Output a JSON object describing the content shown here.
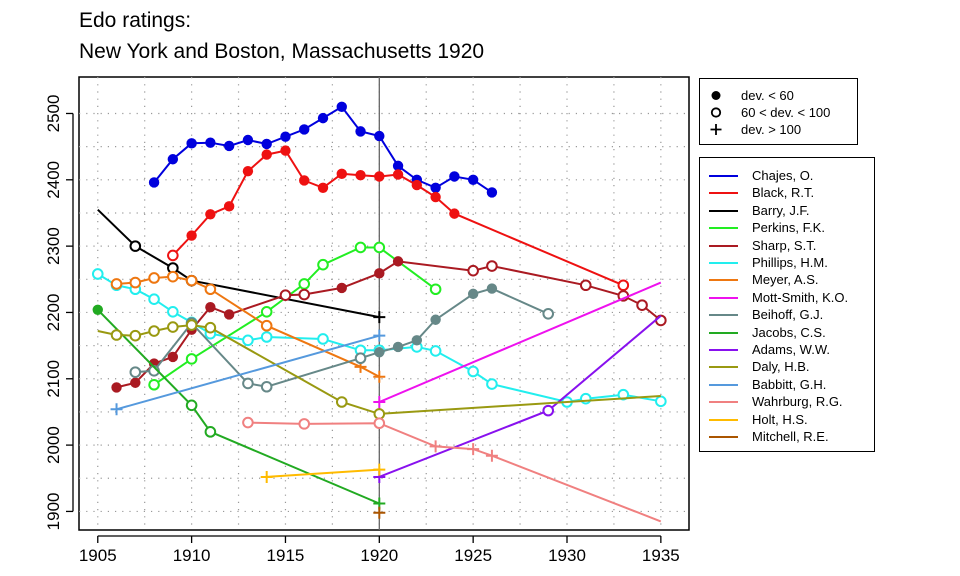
{
  "chart_data": {
    "type": "line",
    "title": "Edo ratings:",
    "subtitle": "New York and Boston, Massachusetts 1920",
    "xlabel": "",
    "ylabel": "",
    "xlim": [
      1904,
      1936.5
    ],
    "ylim": [
      1872,
      2555
    ],
    "x_ticks": [
      1905,
      1910,
      1915,
      1920,
      1925,
      1930,
      1935
    ],
    "y_ticks": [
      1900,
      2000,
      2100,
      2200,
      2300,
      2400,
      2500
    ],
    "grid": true,
    "reference_line_x": 1920,
    "legend_position": "right",
    "symbol_legend": [
      {
        "marker": "filled",
        "label": "dev. < 60"
      },
      {
        "marker": "open",
        "label": "60 < dev. < 100"
      },
      {
        "marker": "plus",
        "label": "dev. > 100"
      }
    ],
    "series": [
      {
        "name": "Chajes, O.",
        "color": "#0000dd",
        "points": [
          [
            1908,
            2396,
            "f"
          ],
          [
            1909,
            2431,
            "f"
          ],
          [
            1910,
            2455,
            "f"
          ],
          [
            1911,
            2456,
            "f"
          ],
          [
            1912,
            2451,
            "f"
          ],
          [
            1913,
            2460,
            "f"
          ],
          [
            1914,
            2454,
            "f"
          ],
          [
            1915,
            2465,
            "f"
          ],
          [
            1916,
            2476,
            "f"
          ],
          [
            1917,
            2493,
            "f"
          ],
          [
            1918,
            2510,
            "f"
          ],
          [
            1919,
            2473,
            "f"
          ],
          [
            1920,
            2466,
            "f"
          ],
          [
            1921,
            2421,
            "f"
          ],
          [
            1922,
            2400,
            "f"
          ],
          [
            1923,
            2388,
            "f"
          ],
          [
            1924,
            2405,
            "f"
          ],
          [
            1925,
            2400,
            "f"
          ],
          [
            1926,
            2381,
            "f"
          ]
        ]
      },
      {
        "name": "Black, R.T.",
        "color": "#ee1111",
        "points": [
          [
            1909,
            2286,
            "o"
          ],
          [
            1910,
            2316,
            "f"
          ],
          [
            1911,
            2348,
            "f"
          ],
          [
            1912,
            2360,
            "f"
          ],
          [
            1913,
            2413,
            "f"
          ],
          [
            1914,
            2438,
            "f"
          ],
          [
            1915,
            2444,
            "f"
          ],
          [
            1916,
            2399,
            "f"
          ],
          [
            1917,
            2388,
            "f"
          ],
          [
            1918,
            2409,
            "f"
          ],
          [
            1919,
            2407,
            "f"
          ],
          [
            1920,
            2405,
            "f"
          ],
          [
            1921,
            2408,
            "f"
          ],
          [
            1922,
            2392,
            "f"
          ],
          [
            1923,
            2374,
            "f"
          ],
          [
            1924,
            2349,
            "f"
          ],
          [
            1933,
            2241,
            "o"
          ]
        ]
      },
      {
        "name": "Barry, J.F.",
        "color": "#000000",
        "points": [
          [
            1905,
            2355,
            "n"
          ],
          [
            1907,
            2300,
            "o"
          ],
          [
            1909,
            2267,
            "o"
          ],
          [
            1910,
            2248,
            "o"
          ],
          [
            1920,
            2193,
            "p"
          ]
        ]
      },
      {
        "name": "Perkins, F.K.",
        "color": "#22ee22",
        "points": [
          [
            1908,
            2091,
            "o"
          ],
          [
            1910,
            2130,
            "o"
          ],
          [
            1914,
            2201,
            "o"
          ],
          [
            1916,
            2243,
            "o"
          ],
          [
            1917,
            2272,
            "o"
          ],
          [
            1919,
            2298,
            "o"
          ],
          [
            1920,
            2298,
            "o"
          ],
          [
            1923,
            2235,
            "o"
          ]
        ]
      },
      {
        "name": "Sharp, S.T.",
        "color": "#aa1a22",
        "points": [
          [
            1906,
            2087,
            "f"
          ],
          [
            1907,
            2094,
            "f"
          ],
          [
            1908,
            2123,
            "f"
          ],
          [
            1909,
            2133,
            "f"
          ],
          [
            1910,
            2174,
            "f"
          ],
          [
            1911,
            2208,
            "f"
          ],
          [
            1912,
            2197,
            "f"
          ],
          [
            1915,
            2226,
            "o"
          ],
          [
            1916,
            2227,
            "o"
          ],
          [
            1918,
            2237,
            "f"
          ],
          [
            1920,
            2259,
            "f"
          ],
          [
            1921,
            2277,
            "f"
          ],
          [
            1925,
            2263,
            "o"
          ],
          [
            1926,
            2270,
            "o"
          ],
          [
            1931,
            2241,
            "o"
          ],
          [
            1933,
            2225,
            "o"
          ],
          [
            1934,
            2211,
            "o"
          ],
          [
            1935,
            2188,
            "o"
          ]
        ]
      },
      {
        "name": "Phillips, H.M.",
        "color": "#22eeee",
        "points": [
          [
            1905,
            2258,
            "o"
          ],
          [
            1906,
            2241,
            "o"
          ],
          [
            1907,
            2235,
            "o"
          ],
          [
            1908,
            2220,
            "o"
          ],
          [
            1909,
            2201,
            "o"
          ],
          [
            1910,
            2185,
            "o"
          ],
          [
            1911,
            2168,
            "o"
          ],
          [
            1913,
            2158,
            "o"
          ],
          [
            1914,
            2163,
            "o"
          ],
          [
            1917,
            2160,
            "o"
          ],
          [
            1919,
            2143,
            "o"
          ],
          [
            1920,
            2143,
            "o"
          ],
          [
            1922,
            2148,
            "o"
          ],
          [
            1923,
            2142,
            "o"
          ],
          [
            1925,
            2111,
            "o"
          ],
          [
            1926,
            2092,
            "o"
          ],
          [
            1930,
            2065,
            "o"
          ],
          [
            1931,
            2070,
            "o"
          ],
          [
            1933,
            2076,
            "o"
          ],
          [
            1935,
            2066,
            "o"
          ]
        ]
      },
      {
        "name": "Meyer, A.S.",
        "color": "#ee7711",
        "points": [
          [
            1906,
            2243,
            "o"
          ],
          [
            1907,
            2245,
            "o"
          ],
          [
            1908,
            2252,
            "o"
          ],
          [
            1909,
            2254,
            "o"
          ],
          [
            1910,
            2248,
            "o"
          ],
          [
            1911,
            2235,
            "o"
          ],
          [
            1914,
            2180,
            "o"
          ],
          [
            1919,
            2118,
            "p"
          ],
          [
            1920,
            2103,
            "p"
          ]
        ]
      },
      {
        "name": "Mott-Smith, K.O.",
        "color": "#ee11ee",
        "points": [
          [
            1920,
            2065,
            "p"
          ],
          [
            1935,
            2245,
            "n"
          ]
        ]
      },
      {
        "name": "Beihoff, G.J.",
        "color": "#668888",
        "points": [
          [
            1907,
            2110,
            "o"
          ],
          [
            1908,
            2112,
            "o"
          ],
          [
            1910,
            2184,
            "o"
          ],
          [
            1913,
            2093,
            "o"
          ],
          [
            1914,
            2088,
            "o"
          ],
          [
            1919,
            2131,
            "o"
          ],
          [
            1920,
            2140,
            "f"
          ],
          [
            1921,
            2148,
            "f"
          ],
          [
            1922,
            2158,
            "f"
          ],
          [
            1923,
            2189,
            "f"
          ],
          [
            1925,
            2228,
            "f"
          ],
          [
            1926,
            2236,
            "f"
          ],
          [
            1929,
            2198,
            "o"
          ]
        ]
      },
      {
        "name": "Jacobs, C.S.",
        "color": "#22aa22",
        "points": [
          [
            1905,
            2204,
            "f"
          ],
          [
            1910,
            2060,
            "o"
          ],
          [
            1911,
            2020,
            "o"
          ],
          [
            1920,
            1912,
            "p"
          ]
        ]
      },
      {
        "name": "Adams, W.W.",
        "color": "#8811ee",
        "points": [
          [
            1920,
            1952,
            "p"
          ],
          [
            1929,
            2052,
            "o"
          ],
          [
            1935,
            2195,
            "n"
          ]
        ]
      },
      {
        "name": "Daly, H.B.",
        "color": "#999911",
        "points": [
          [
            1905,
            2172,
            "n"
          ],
          [
            1906,
            2166,
            "o"
          ],
          [
            1907,
            2165,
            "o"
          ],
          [
            1908,
            2172,
            "o"
          ],
          [
            1909,
            2178,
            "o"
          ],
          [
            1910,
            2181,
            "o"
          ],
          [
            1911,
            2177,
            "o"
          ],
          [
            1918,
            2065,
            "o"
          ],
          [
            1920,
            2047,
            "o"
          ],
          [
            1935,
            2074,
            "n"
          ]
        ]
      },
      {
        "name": "Babbitt, G.H.",
        "color": "#5599dd",
        "points": [
          [
            1906,
            2054,
            "p"
          ],
          [
            1920,
            2165,
            "p"
          ]
        ]
      },
      {
        "name": "Wahrburg, R.G.",
        "color": "#f08080",
        "points": [
          [
            1913,
            2034,
            "o"
          ],
          [
            1916,
            2032,
            "o"
          ],
          [
            1920,
            2033,
            "o"
          ],
          [
            1923,
            1998,
            "p"
          ],
          [
            1925,
            1994,
            "p"
          ],
          [
            1926,
            1984,
            "p"
          ],
          [
            1935,
            1885,
            "n"
          ]
        ]
      },
      {
        "name": "Holt, H.S.",
        "color": "#ffbb00",
        "points": [
          [
            1914,
            1952,
            "p"
          ],
          [
            1920,
            1963,
            "p"
          ]
        ]
      },
      {
        "name": "Mitchell, R.E.",
        "color": "#aa5500",
        "points": [
          [
            1920,
            1898,
            "p"
          ]
        ]
      }
    ]
  }
}
